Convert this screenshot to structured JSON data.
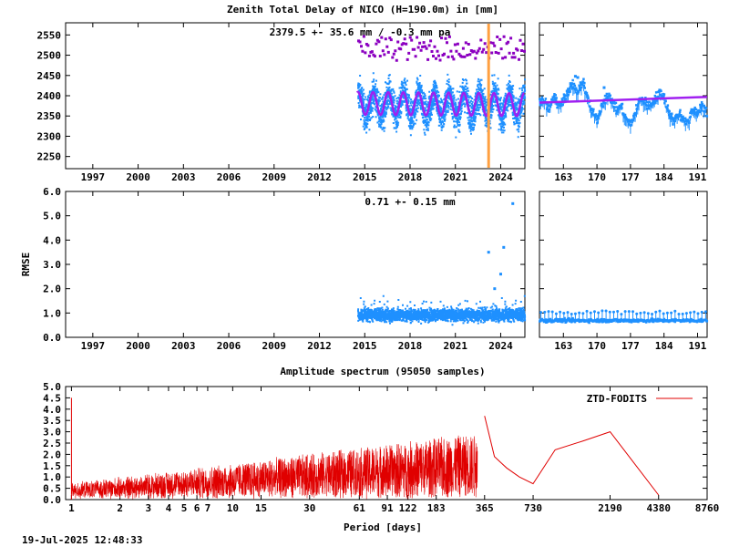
{
  "chart_data": [
    {
      "id": "ztd-long",
      "type": "scatter",
      "title": "Zenith Total Delay of NICO (H=190.0m) in [mm]",
      "annotation": "2379.5 +-  35.6 mm / -0.3 mm pa",
      "x_ticks": [
        "1997",
        "2000",
        "2003",
        "2006",
        "2009",
        "2012",
        "2015",
        "2018",
        "2021",
        "2024"
      ],
      "x_tick_years": [
        1997,
        2000,
        2003,
        2006,
        2009,
        2012,
        2015,
        2018,
        2021,
        2024
      ],
      "xlim": [
        1995.2,
        2025.6
      ],
      "y_ticks": [
        "2250",
        "2300",
        "2350",
        "2400",
        "2450",
        "2500",
        "2550"
      ],
      "y_tick_values": [
        2250,
        2300,
        2350,
        2400,
        2450,
        2500,
        2550
      ],
      "ylim": [
        2220,
        2580
      ],
      "data_range_years": [
        2014.5,
        2025.55
      ],
      "mean": 2379.5,
      "std": 35.6,
      "trend_per_year": -0.3,
      "seasonal_amplitude": 28,
      "event_line_year": 2023.2,
      "colors": {
        "points": "#1e90ff",
        "fit": "#a020f0",
        "outliers": "#8b00c0",
        "event": "#ffa040"
      }
    },
    {
      "id": "ztd-zoom",
      "type": "line",
      "x_ticks": [
        "163",
        "170",
        "177",
        "184",
        "191"
      ],
      "x_tick_values": [
        163,
        170,
        177,
        184,
        191
      ],
      "xlim": [
        158,
        193
      ],
      "ylim": [
        2220,
        2580
      ],
      "points": [
        [
          158,
          2385
        ],
        [
          159,
          2390
        ],
        [
          160,
          2370
        ],
        [
          161,
          2400
        ],
        [
          162,
          2375
        ],
        [
          163,
          2395
        ],
        [
          164,
          2410
        ],
        [
          165,
          2430
        ],
        [
          166,
          2405
        ],
        [
          167,
          2440
        ],
        [
          168,
          2395
        ],
        [
          169,
          2360
        ],
        [
          170,
          2340
        ],
        [
          171,
          2380
        ],
        [
          172,
          2400
        ],
        [
          173,
          2390
        ],
        [
          174,
          2365
        ],
        [
          175,
          2375
        ],
        [
          176,
          2345
        ],
        [
          177,
          2330
        ],
        [
          178,
          2360
        ],
        [
          179,
          2395
        ],
        [
          180,
          2385
        ],
        [
          181,
          2375
        ],
        [
          182,
          2390
        ],
        [
          183,
          2410
        ],
        [
          184,
          2395
        ],
        [
          185,
          2360
        ],
        [
          186,
          2340
        ],
        [
          187,
          2355
        ],
        [
          188,
          2345
        ],
        [
          189,
          2335
        ],
        [
          190,
          2365
        ],
        [
          191,
          2360
        ],
        [
          192,
          2380
        ],
        [
          193,
          2350
        ]
      ],
      "fit": [
        [
          158,
          2383
        ],
        [
          193,
          2397
        ]
      ],
      "colors": {
        "points": "#1e90ff",
        "fit": "#a020f0"
      }
    },
    {
      "id": "rmse-long",
      "type": "scatter",
      "ylabel": "RMSE",
      "annotation": "0.71 +-  0.15 mm",
      "x_ticks": [
        "1997",
        "2000",
        "2003",
        "2006",
        "2009",
        "2012",
        "2015",
        "2018",
        "2021",
        "2024"
      ],
      "x_tick_years": [
        1997,
        2000,
        2003,
        2006,
        2009,
        2012,
        2015,
        2018,
        2021,
        2024
      ],
      "xlim": [
        1995.2,
        2025.6
      ],
      "y_ticks": [
        "0.0",
        "1.0",
        "2.0",
        "3.0",
        "4.0",
        "5.0",
        "6.0"
      ],
      "y_tick_values": [
        0,
        1,
        2,
        3,
        4,
        5,
        6
      ],
      "ylim": [
        0,
        6
      ],
      "data_range_years": [
        2014.5,
        2025.55
      ],
      "mean": 0.71,
      "std": 0.15,
      "outliers": [
        [
          2023.2,
          3.5
        ],
        [
          2024.2,
          3.7
        ],
        [
          2024.8,
          5.5
        ],
        [
          2024.0,
          2.6
        ],
        [
          2023.6,
          2.0
        ]
      ],
      "colors": {
        "points": "#1e90ff"
      }
    },
    {
      "id": "rmse-zoom",
      "type": "line",
      "x_ticks": [
        "163",
        "170",
        "177",
        "184",
        "191"
      ],
      "x_tick_values": [
        163,
        170,
        177,
        184,
        191
      ],
      "xlim": [
        158,
        193
      ],
      "ylim": [
        0,
        6
      ],
      "base": 0.7,
      "colors": {
        "points": "#1e90ff"
      }
    },
    {
      "id": "spectrum",
      "type": "line",
      "title": "Amplitude spectrum (95050 samples)",
      "xlabel": "Period [days]",
      "x_ticks": [
        "1",
        "2",
        "3",
        "4",
        "5",
        "6",
        "7",
        "10",
        "15",
        "30",
        "61",
        "91",
        "122",
        "183",
        "365",
        "730",
        "2190",
        "4380",
        "8760"
      ],
      "x_tick_values": [
        1,
        2,
        3,
        4,
        5,
        6,
        7,
        10,
        15,
        30,
        61,
        91,
        122,
        183,
        365,
        730,
        2190,
        4380,
        8760
      ],
      "xlim": [
        0.92,
        8760
      ],
      "y_ticks": [
        "0.0",
        "0.5",
        "1.0",
        "1.5",
        "2.0",
        "2.5",
        "3.0",
        "3.5",
        "4.0",
        "4.5",
        "5.0"
      ],
      "y_tick_values": [
        0,
        0.5,
        1,
        1.5,
        2,
        2.5,
        3,
        3.5,
        4,
        4.5,
        5
      ],
      "ylim": [
        0,
        5
      ],
      "peak_at_1day": 4.5,
      "series": [
        {
          "name": "ZTD-FODITS",
          "color": "#e00000",
          "long_period_points": [
            [
              365,
              3.7
            ],
            [
              420,
              1.9
            ],
            [
              500,
              1.4
            ],
            [
              600,
              1.0
            ],
            [
              730,
              0.7
            ],
            [
              1000,
              2.2
            ],
            [
              1500,
              2.6
            ],
            [
              2190,
              3.0
            ],
            [
              4380,
              0.2
            ]
          ]
        }
      ]
    }
  ],
  "timestamp": "19-Jul-2025 12:48:33"
}
